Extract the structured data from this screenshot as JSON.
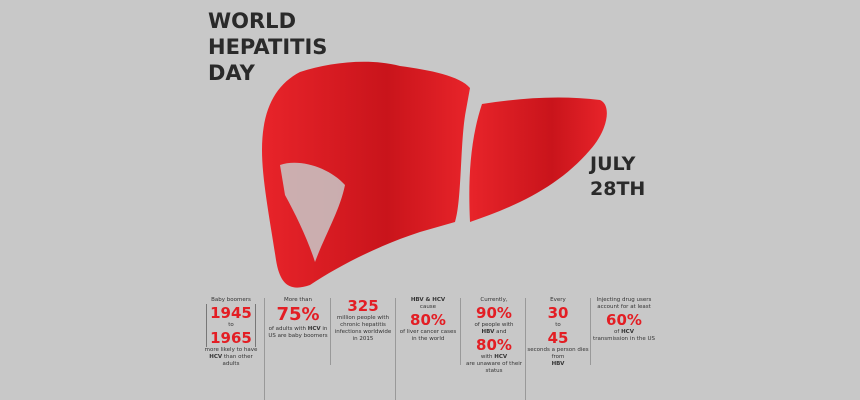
{
  "title": [
    "WORLD",
    "HEPATITIS",
    "DAY"
  ],
  "date": [
    "JULY",
    "28TH"
  ],
  "accent": "#e31e24",
  "stats": [
    {
      "pre": "Baby boomers",
      "big1": "1945",
      "mid": "to",
      "big2": "1965",
      "post1": "more likely to have",
      "bold": "HCV",
      "post2": "than other adults"
    },
    {
      "pre": "More than",
      "big1": "75%",
      "post1": "of adults with",
      "bold": "HCV",
      "post2": "in US are baby boomers"
    },
    {
      "big1": "325",
      "post1": "million people with chronic hepatitis infections worldwide in 2015"
    },
    {
      "bold": "HBV & HCV",
      "pre": "cause",
      "big1": "80%",
      "post1": "of liver cancer cases in the world"
    },
    {
      "pre": "Currently,",
      "big1": "90%",
      "mid1": "of people with",
      "bold": "HBV",
      "mid2": "and",
      "big2": "80%",
      "post1": "with",
      "bold2": "HCV",
      "post2": "are unaware of their status"
    },
    {
      "pre": "Every",
      "big1": "30",
      "mid": "to",
      "big2": "45",
      "post1": "seconds a person dies from",
      "bold": "HBV"
    },
    {
      "pre": "Injecting drug users account for at least",
      "big1": "60%",
      "post1": "of",
      "bold": "HCV",
      "post2": "transmission in the US"
    }
  ]
}
